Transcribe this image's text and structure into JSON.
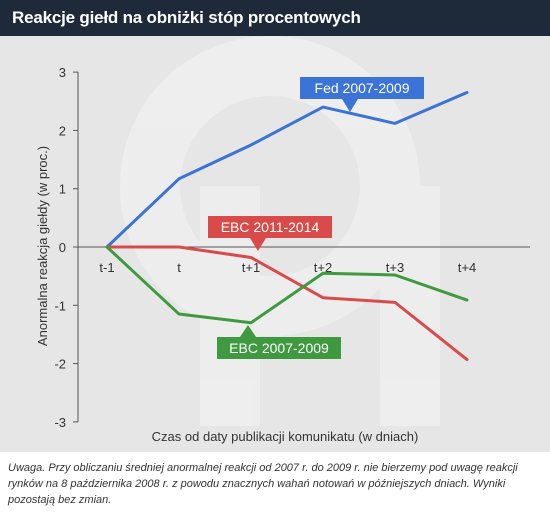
{
  "header": {
    "title": "Reakcje giełd na obniżki stóp procentowych"
  },
  "note": "Uwaga. Przy obliczaniu średniej anormalnej reakcji od 2007 r. do 2009 r. nie bierzemy pod uwagę reakcji rynków na 8 października 2008 r. z powodu znacznych wahań notowań w późniejszych dniach. Wyniki pozostają bez zmian.",
  "chart_data": {
    "type": "line",
    "title": "Reakcje giełd na obniżki stóp procentowych",
    "xlabel": "Czas od daty publikacji komunikatu (w dniach)",
    "ylabel": "Anormalna reakcja giełdy (w proc.)",
    "categories": [
      "t-1",
      "t",
      "t+1",
      "t+2",
      "t+3",
      "t+4"
    ],
    "yticks": [
      "3",
      "2",
      "1",
      "0",
      "-1",
      "-2",
      "-3"
    ],
    "ylim": [
      -3,
      3
    ],
    "grid": false,
    "series": [
      {
        "name": "Fed 2007-2009",
        "color": "#3b73d6",
        "values": [
          0,
          1.17,
          1.75,
          2.4,
          2.12,
          2.65
        ]
      },
      {
        "name": "EBC 2011-2014",
        "color": "#d94a4a",
        "values": [
          0,
          0,
          -0.18,
          -0.87,
          -0.95,
          -1.93
        ]
      },
      {
        "name": "EBC 2007-2009",
        "color": "#3f9a3f",
        "values": [
          0,
          -1.15,
          -1.3,
          -0.45,
          -0.48,
          -0.91
        ]
      }
    ]
  }
}
